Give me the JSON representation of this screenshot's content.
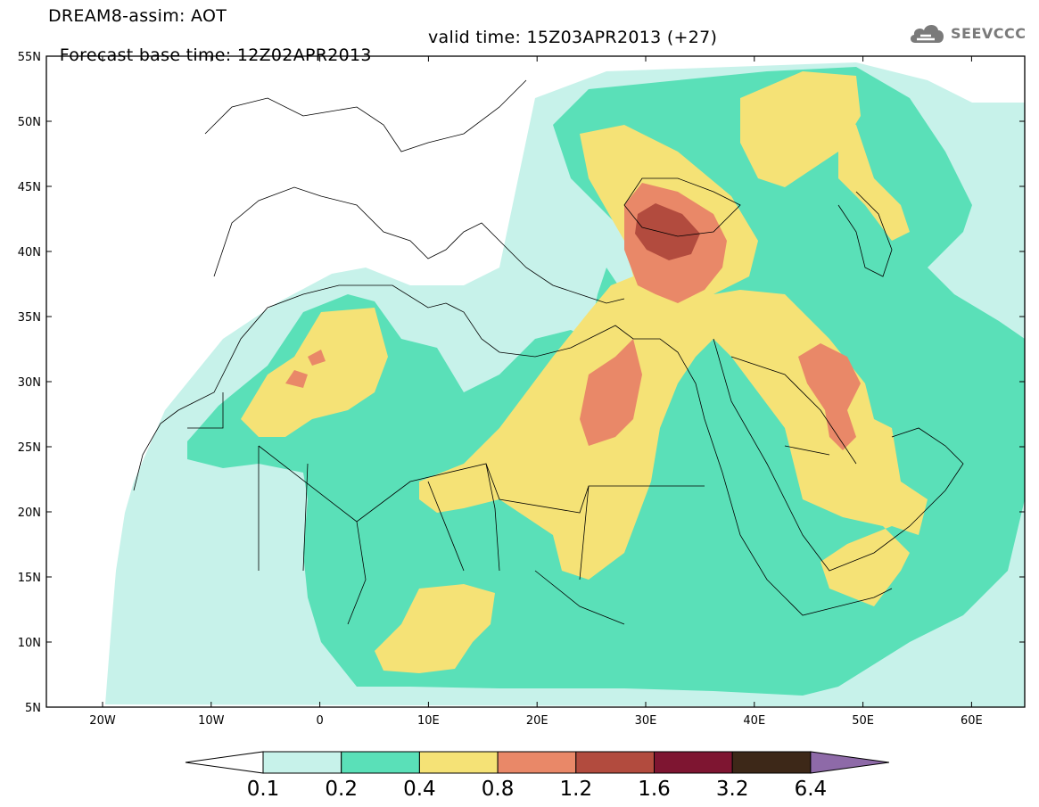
{
  "header": {
    "title_line1": "DREAM8-assim: AOT",
    "base_time": "Forecast base time: 12Z02APR2013",
    "valid_time": "valid time: 15Z03APR2013 (+27)",
    "logo_text": "SEEVCCC",
    "logo_icon": "cloud-icon"
  },
  "map": {
    "lat_labels": [
      "55N",
      "50N",
      "45N",
      "40N",
      "35N",
      "30N",
      "25N",
      "20N",
      "15N",
      "10N",
      "5N"
    ],
    "lon_labels": [
      "20W",
      "10W",
      "0",
      "10E",
      "20E",
      "30E",
      "40E",
      "50E",
      "60E"
    ]
  },
  "colorbar": {
    "labels": [
      "0.1",
      "0.2",
      "0.4",
      "0.8",
      "1.2",
      "1.6",
      "3.2",
      "6.4"
    ],
    "colors": [
      "#c7f2ea",
      "#5ae0b8",
      "#f5e276",
      "#e98868",
      "#b24b3e",
      "#7e1531",
      "#3d2818",
      "#8e6aa8"
    ]
  },
  "field_colors": {
    "c01": "#c7f2ea",
    "c02": "#5ae0b8",
    "c04": "#f5e276",
    "c08": "#e98868",
    "c12": "#b24b3e"
  }
}
